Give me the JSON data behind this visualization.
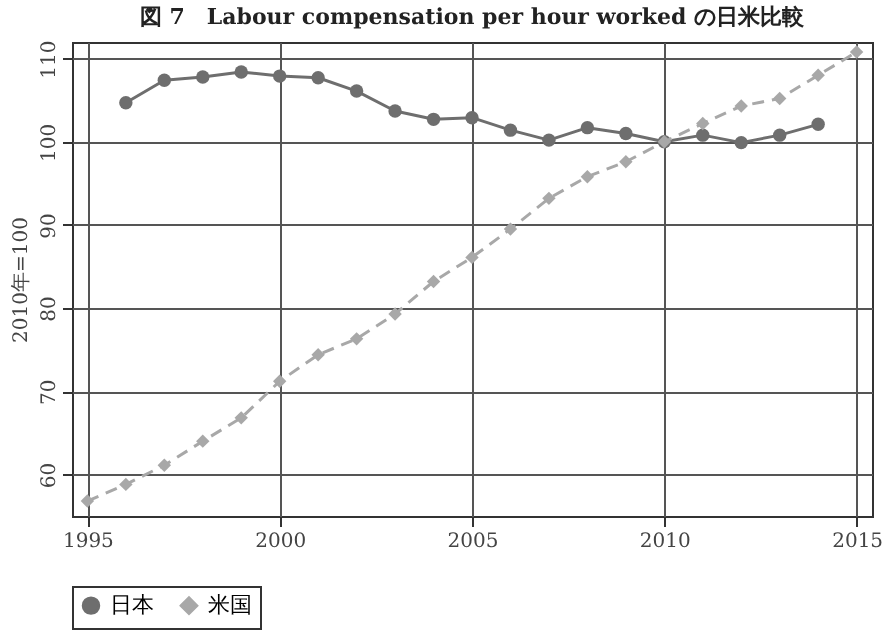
{
  "chart_data": {
    "type": "line",
    "title": "図 7　Labour compensation per hour worked の日米比較",
    "ylabel": "2010年=100",
    "x": [
      1995,
      1996,
      1997,
      1998,
      1999,
      2000,
      2001,
      2002,
      2003,
      2004,
      2005,
      2006,
      2007,
      2008,
      2009,
      2010,
      2011,
      2012,
      2013,
      2014,
      2015
    ],
    "series": [
      {
        "name": "日本",
        "color": "#6e6e6e",
        "marker": "circle",
        "line_style": "solid",
        "values": [
          null,
          104.7,
          107.4,
          107.8,
          108.4,
          107.9,
          107.7,
          106.1,
          103.7,
          102.7,
          102.9,
          101.4,
          100.2,
          101.7,
          101.0,
          100,
          100.8,
          99.9,
          100.8,
          102.1,
          null
        ]
      },
      {
        "name": "米国",
        "color": "#a8a8a8",
        "marker": "diamond",
        "line_style": "dashed",
        "values": [
          56.8,
          58.8,
          61.1,
          64.0,
          66.8,
          71.2,
          74.4,
          76.3,
          79.3,
          83.2,
          86.1,
          89.5,
          93.2,
          95.8,
          97.6,
          100,
          102.2,
          104.3,
          105.2,
          108.0,
          110.8
        ]
      }
    ],
    "xlim": [
      1994.6,
      2015.4
    ],
    "xticks": [
      1995,
      2000,
      2005,
      2010,
      2015
    ],
    "ylim": [
      55,
      112
    ],
    "yticks": [
      60,
      70,
      80,
      90,
      100,
      110
    ],
    "grid": true,
    "legend": "bottom"
  }
}
